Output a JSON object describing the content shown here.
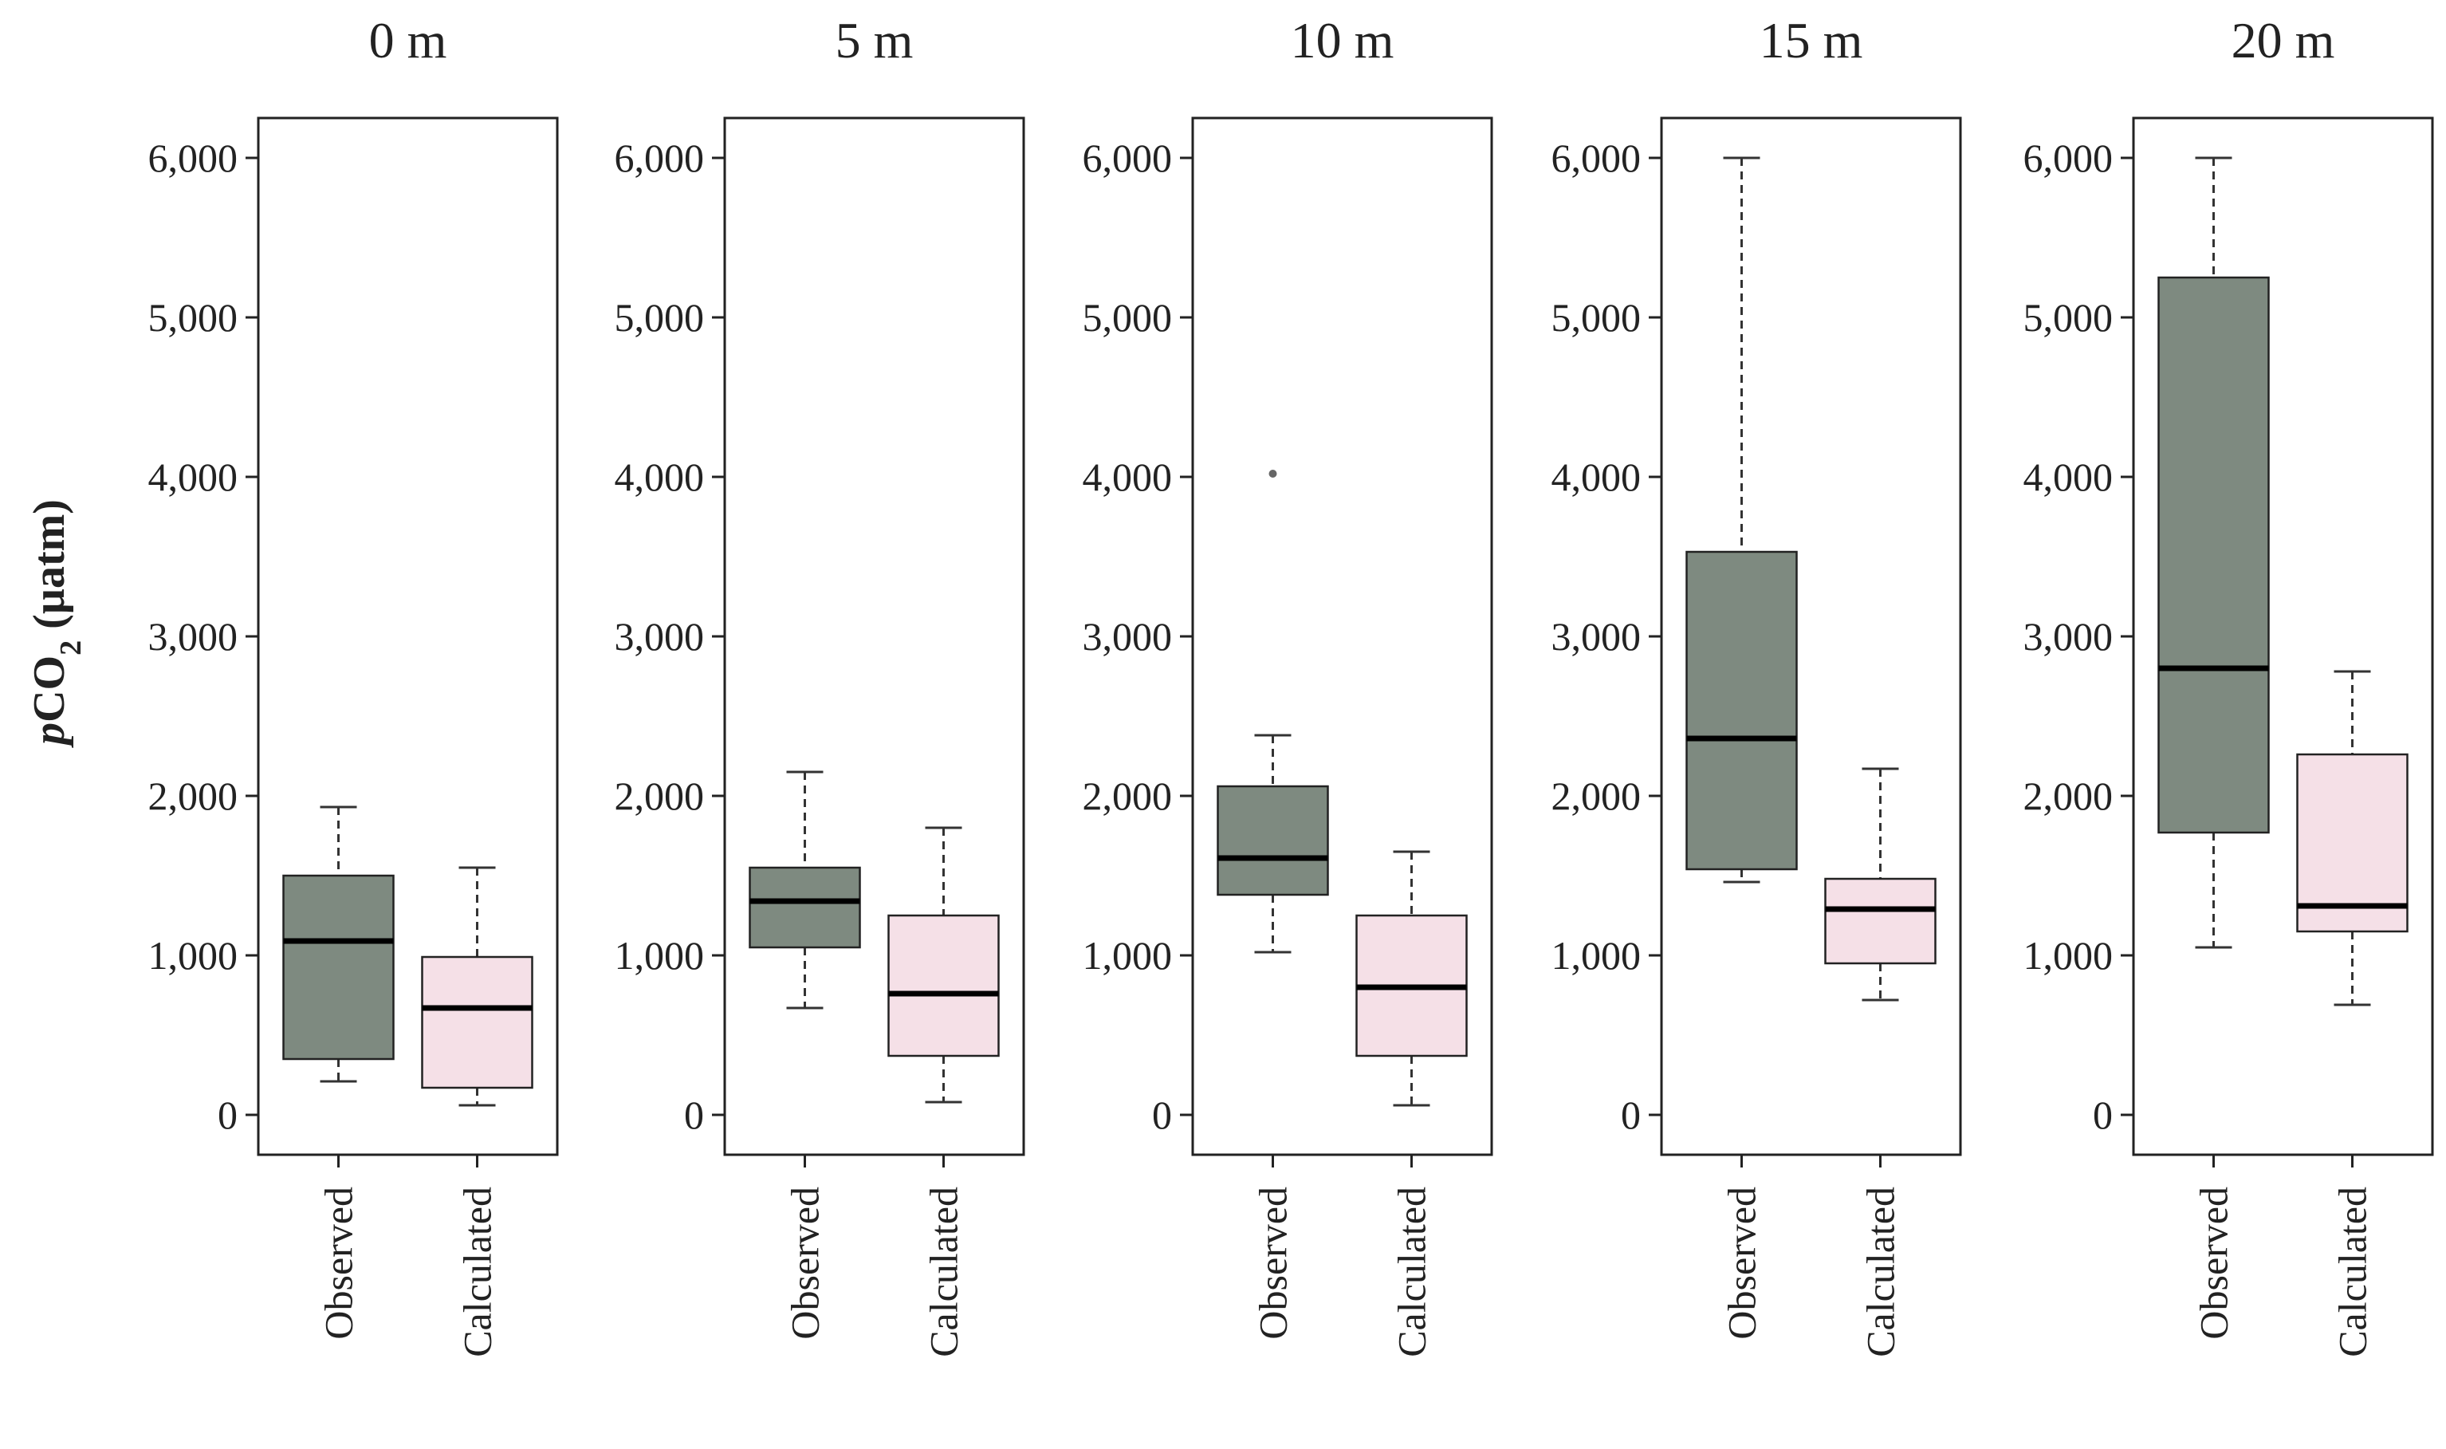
{
  "chart_data": {
    "type": "boxplot",
    "ylabel_italic": "p",
    "ylabel_main": "CO",
    "ylabel_sub": "2",
    "ylabel_unit": " (µatm)",
    "ylim": [
      -250,
      6250
    ],
    "yticks": [
      0,
      1000,
      2000,
      3000,
      4000,
      5000,
      6000
    ],
    "ytick_labels": [
      "0",
      "1,000",
      "2,000",
      "3,000",
      "4,000",
      "5,000",
      "6,000"
    ],
    "categories": [
      "Observed",
      "Calculated"
    ],
    "colors": {
      "Observed": "#7e8a80",
      "Calculated": "#f5e0e7"
    },
    "panels": [
      {
        "title": "0 m",
        "boxes": [
          {
            "category": "Observed",
            "whisker_low": 210,
            "q1": 350,
            "median": 1090,
            "q3": 1500,
            "whisker_high": 1930,
            "outliers": []
          },
          {
            "category": "Calculated",
            "whisker_low": 60,
            "q1": 170,
            "median": 670,
            "q3": 990,
            "whisker_high": 1550,
            "outliers": []
          }
        ]
      },
      {
        "title": "5 m",
        "boxes": [
          {
            "category": "Observed",
            "whisker_low": 670,
            "q1": 1050,
            "median": 1340,
            "q3": 1550,
            "whisker_high": 2150,
            "outliers": []
          },
          {
            "category": "Calculated",
            "whisker_low": 80,
            "q1": 370,
            "median": 760,
            "q3": 1250,
            "whisker_high": 1800,
            "outliers": []
          }
        ]
      },
      {
        "title": "10 m",
        "boxes": [
          {
            "category": "Observed",
            "whisker_low": 1020,
            "q1": 1380,
            "median": 1610,
            "q3": 2060,
            "whisker_high": 2380,
            "outliers": [
              4020
            ]
          },
          {
            "category": "Calculated",
            "whisker_low": 60,
            "q1": 370,
            "median": 800,
            "q3": 1250,
            "whisker_high": 1650,
            "outliers": []
          }
        ]
      },
      {
        "title": "15 m",
        "boxes": [
          {
            "category": "Observed",
            "whisker_low": 1460,
            "q1": 1540,
            "median": 2360,
            "q3": 3530,
            "whisker_high": 6000,
            "outliers": []
          },
          {
            "category": "Calculated",
            "whisker_low": 720,
            "q1": 950,
            "median": 1290,
            "q3": 1480,
            "whisker_high": 2170,
            "outliers": []
          }
        ]
      },
      {
        "title": "20 m",
        "boxes": [
          {
            "category": "Observed",
            "whisker_low": 1050,
            "q1": 1770,
            "median": 2800,
            "q3": 5250,
            "whisker_high": 6000,
            "outliers": []
          },
          {
            "category": "Calculated",
            "whisker_low": 690,
            "q1": 1150,
            "median": 1310,
            "q3": 2260,
            "whisker_high": 2780,
            "outliers": []
          }
        ]
      }
    ]
  }
}
